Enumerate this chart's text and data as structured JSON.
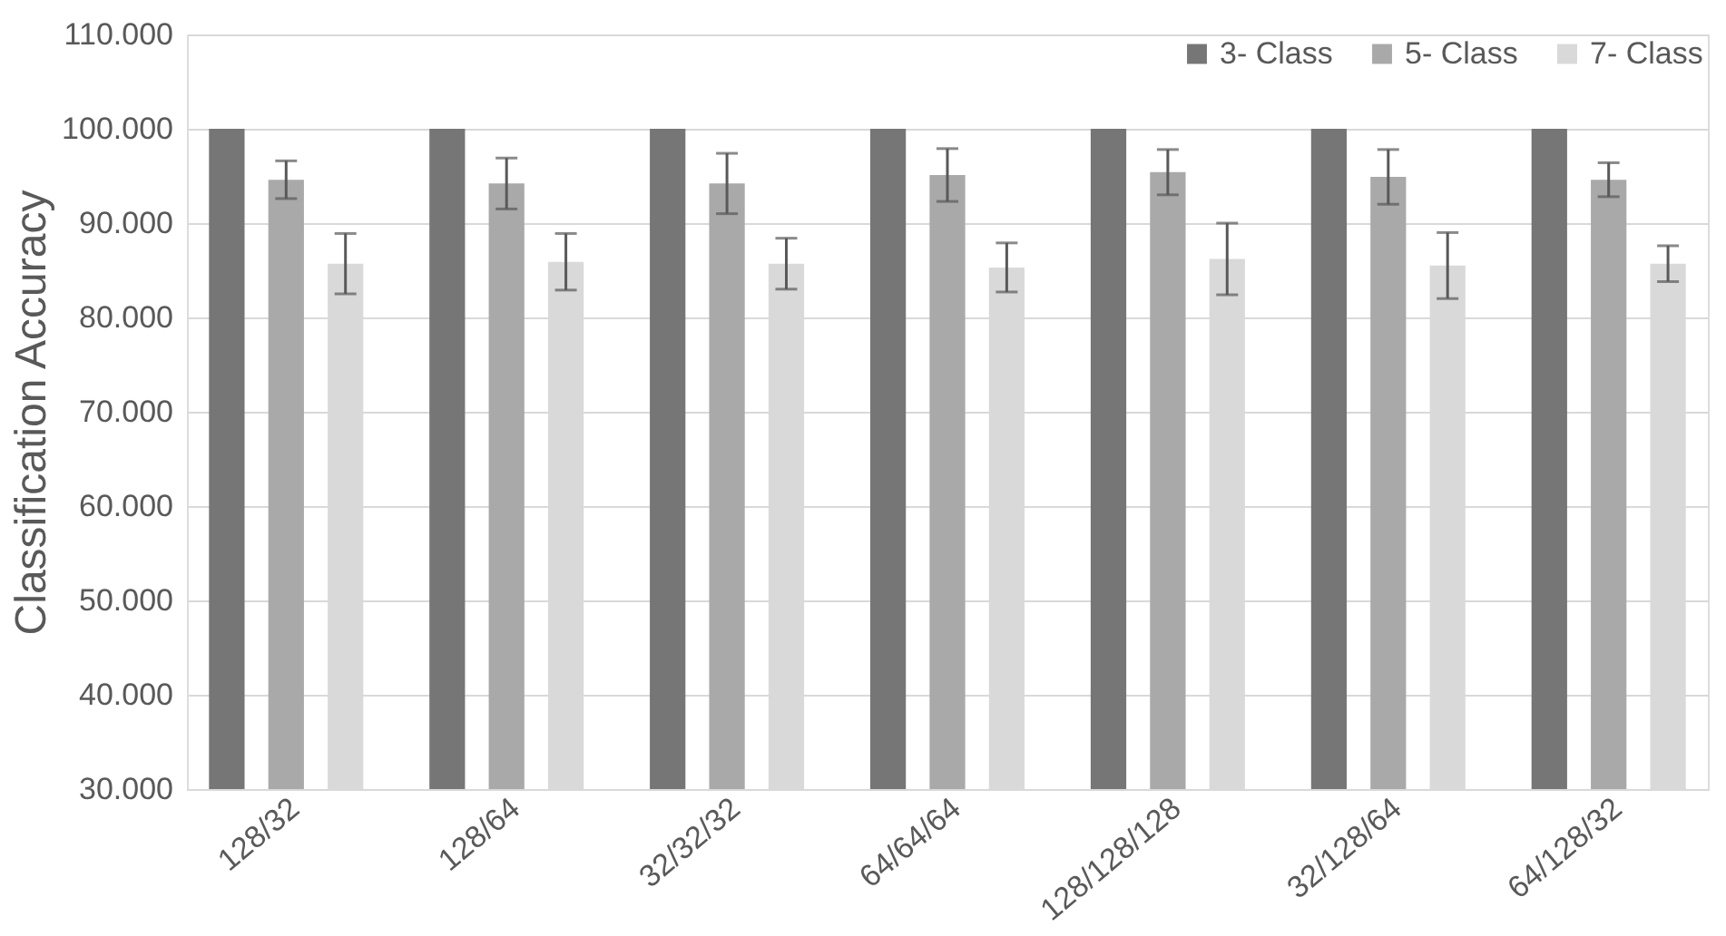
{
  "chart_data": {
    "type": "bar",
    "ylabel": "Classification Accuracy",
    "categories": [
      "128/32",
      "128/64",
      "32/32/32",
      "64/64/64",
      "128/128/128",
      "32/128/64",
      "64/128/32"
    ],
    "series": [
      {
        "name": "3- Class",
        "color": "#767676",
        "values": [
          100,
          100,
          100,
          100,
          100,
          100,
          100
        ]
      },
      {
        "name": "5- Class",
        "color": "#a9a9a9",
        "values": [
          94.6,
          94.2,
          94.2,
          95.1,
          95.4,
          94.9,
          94.6
        ],
        "errors": [
          2.0,
          2.7,
          3.2,
          2.8,
          2.4,
          2.9,
          1.8
        ]
      },
      {
        "name": "7- Class",
        "color": "#d9d9d9",
        "values": [
          85.7,
          85.9,
          85.7,
          85.3,
          86.2,
          85.5,
          85.7
        ],
        "errors": [
          3.2,
          3.0,
          2.7,
          2.6,
          3.8,
          3.5,
          1.9
        ]
      }
    ],
    "ylim": [
      30,
      110
    ],
    "yticks": [
      {
        "value": 30,
        "label": "30.000"
      },
      {
        "value": 40,
        "label": "40.000"
      },
      {
        "value": 50,
        "label": "50.000"
      },
      {
        "value": 60,
        "label": "60.000"
      },
      {
        "value": 70,
        "label": "70.000"
      },
      {
        "value": 80,
        "label": "80.000"
      },
      {
        "value": 90,
        "label": "90.000"
      },
      {
        "value": 100,
        "label": "100.000"
      },
      {
        "value": 110,
        "label": "110.000"
      }
    ],
    "grid": "y",
    "legend": "top right"
  }
}
